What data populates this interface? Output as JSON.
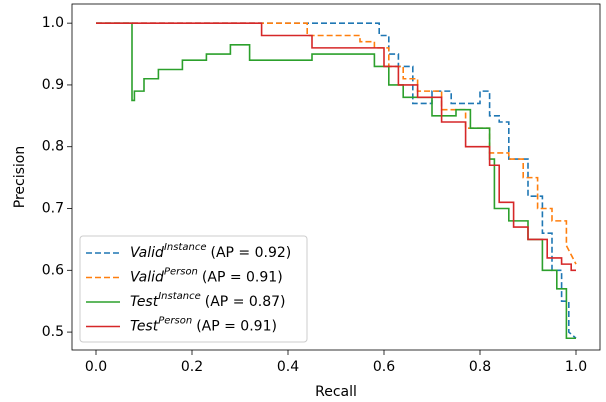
{
  "chart_data": {
    "type": "line",
    "x_label": "Recall",
    "y_label": "Precision",
    "xlim": [
      -0.05,
      1.05
    ],
    "ylim": [
      0.471,
      1.031
    ],
    "xticks": [
      {
        "value": 0,
        "label": "0.0"
      },
      0.2,
      0.4,
      0.6,
      0.8,
      {
        "value": 1,
        "label": "1.0"
      }
    ],
    "yticks": [
      0.5,
      0.6,
      0.7,
      0.8,
      0.9,
      {
        "value": 1,
        "label": "1.0"
      }
    ],
    "grid": false,
    "legend": "lower left",
    "series": [
      {
        "name": "Valid",
        "name_sup": "Instance",
        "name_suffix": "(AP = 0.92)",
        "color": "#1f77b4",
        "dashed": true,
        "x": [
          0,
          0.59,
          0.59,
          0.61,
          0.61,
          0.63,
          0.63,
          0.66,
          0.66,
          0.7,
          0.7,
          0.74,
          0.74,
          0.8,
          0.8,
          0.82,
          0.82,
          0.84,
          0.84,
          0.86,
          0.86,
          0.9,
          0.9,
          0.93,
          0.93,
          0.95,
          0.95,
          0.97,
          0.97,
          0.985,
          0.985,
          1.0
        ],
        "y": [
          1,
          1,
          0.98,
          0.98,
          0.95,
          0.95,
          0.93,
          0.93,
          0.87,
          0.87,
          0.89,
          0.89,
          0.87,
          0.87,
          0.89,
          0.89,
          0.85,
          0.85,
          0.84,
          0.84,
          0.78,
          0.78,
          0.72,
          0.72,
          0.66,
          0.66,
          0.6,
          0.6,
          0.55,
          0.55,
          0.5,
          0.49
        ]
      },
      {
        "name": "Valid",
        "name_sup": "Person",
        "name_suffix": "(AP = 0.91)",
        "color": "#ff7f0e",
        "dashed": true,
        "x": [
          0,
          0.44,
          0.44,
          0.55,
          0.55,
          0.58,
          0.58,
          0.61,
          0.61,
          0.64,
          0.64,
          0.67,
          0.67,
          0.72,
          0.72,
          0.77,
          0.77,
          0.82,
          0.82,
          0.86,
          0.86,
          0.89,
          0.89,
          0.92,
          0.92,
          0.95,
          0.95,
          0.98,
          0.98,
          1.0
        ],
        "y": [
          1,
          1,
          0.98,
          0.98,
          0.97,
          0.97,
          0.96,
          0.96,
          0.93,
          0.93,
          0.91,
          0.91,
          0.89,
          0.89,
          0.86,
          0.86,
          0.83,
          0.83,
          0.79,
          0.79,
          0.78,
          0.78,
          0.75,
          0.75,
          0.7,
          0.7,
          0.68,
          0.68,
          0.64,
          0.61
        ]
      },
      {
        "name": "Test",
        "name_sup": "Instance",
        "name_suffix": "(AP = 0.87)",
        "color": "#2ca02c",
        "dashed": false,
        "x": [
          0,
          0.075,
          0.075,
          0.08,
          0.08,
          0.1,
          0.1,
          0.13,
          0.13,
          0.18,
          0.18,
          0.23,
          0.23,
          0.28,
          0.28,
          0.32,
          0.32,
          0.45,
          0.45,
          0.58,
          0.58,
          0.61,
          0.61,
          0.64,
          0.64,
          0.7,
          0.7,
          0.75,
          0.75,
          0.78,
          0.78,
          0.82,
          0.82,
          0.83,
          0.83,
          0.86,
          0.86,
          0.9,
          0.9,
          0.93,
          0.93,
          0.96,
          0.96,
          0.98,
          0.98,
          1.0
        ],
        "y": [
          1,
          1,
          0.875,
          0.875,
          0.89,
          0.89,
          0.91,
          0.91,
          0.925,
          0.925,
          0.94,
          0.94,
          0.95,
          0.95,
          0.965,
          0.965,
          0.94,
          0.94,
          0.95,
          0.95,
          0.93,
          0.93,
          0.9,
          0.9,
          0.88,
          0.88,
          0.85,
          0.85,
          0.86,
          0.86,
          0.83,
          0.83,
          0.78,
          0.78,
          0.7,
          0.7,
          0.68,
          0.68,
          0.65,
          0.65,
          0.6,
          0.6,
          0.57,
          0.57,
          0.49,
          0.49
        ]
      },
      {
        "name": "Test",
        "name_sup": "Person",
        "name_suffix": "(AP = 0.91)",
        "color": "#d62728",
        "dashed": false,
        "x": [
          0,
          0.345,
          0.345,
          0.45,
          0.45,
          0.6,
          0.6,
          0.63,
          0.63,
          0.67,
          0.67,
          0.72,
          0.72,
          0.77,
          0.77,
          0.82,
          0.82,
          0.84,
          0.84,
          0.87,
          0.87,
          0.9,
          0.9,
          0.94,
          0.94,
          0.97,
          0.97,
          0.99,
          0.99,
          1.0
        ],
        "y": [
          1,
          1,
          0.98,
          0.98,
          0.96,
          0.96,
          0.93,
          0.93,
          0.9,
          0.9,
          0.88,
          0.88,
          0.84,
          0.84,
          0.8,
          0.8,
          0.77,
          0.77,
          0.71,
          0.71,
          0.67,
          0.67,
          0.65,
          0.65,
          0.62,
          0.62,
          0.61,
          0.61,
          0.6,
          0.6
        ]
      }
    ]
  }
}
